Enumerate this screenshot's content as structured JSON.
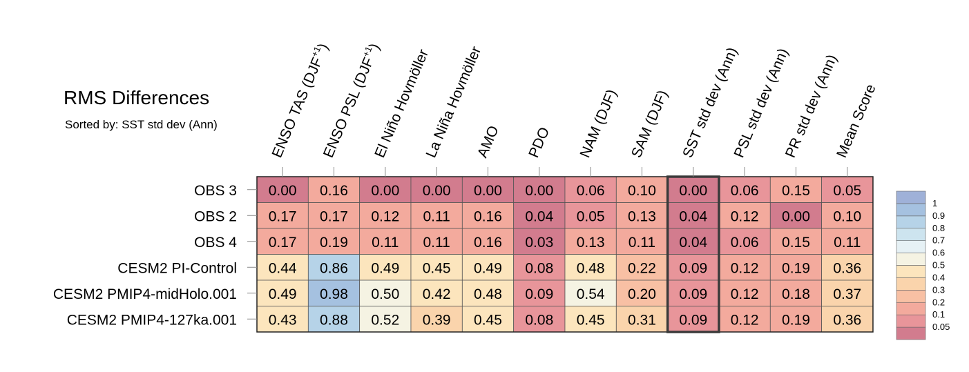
{
  "chart_data": {
    "type": "heatmap",
    "title": "RMS Differences",
    "subtitle": "Sorted by: SST std dev (Ann)",
    "columns": [
      "ENSO TAS (DJF+1)",
      "ENSO PSL (DJF+1)",
      "El Niño Hovmöller",
      "La Niña Hovmöller",
      "AMO",
      "PDO",
      "NAM (DJF)",
      "SAM (DJF)",
      "SST std dev (Ann)",
      "PSL std dev (Ann)",
      "PR std dev (Ann)",
      "Mean Score"
    ],
    "rows": [
      "OBS 3",
      "OBS 2",
      "OBS 4",
      "CESM2 PI-Control",
      "CESM2 PMIP4-midHolo.001",
      "CESM2 PMIP4-127ka.001"
    ],
    "values": [
      [
        0.0,
        0.16,
        0.0,
        0.0,
        0.0,
        0.0,
        0.06,
        0.1,
        0.0,
        0.06,
        0.15,
        0.05
      ],
      [
        0.17,
        0.17,
        0.12,
        0.11,
        0.16,
        0.04,
        0.05,
        0.13,
        0.04,
        0.12,
        0.0,
        0.1
      ],
      [
        0.17,
        0.19,
        0.11,
        0.11,
        0.16,
        0.03,
        0.13,
        0.11,
        0.04,
        0.06,
        0.15,
        0.11
      ],
      [
        0.44,
        0.86,
        0.49,
        0.45,
        0.49,
        0.08,
        0.48,
        0.22,
        0.09,
        0.12,
        0.19,
        0.36
      ],
      [
        0.49,
        0.98,
        0.5,
        0.42,
        0.48,
        0.09,
        0.54,
        0.2,
        0.09,
        0.12,
        0.18,
        0.37
      ],
      [
        0.43,
        0.88,
        0.52,
        0.39,
        0.45,
        0.08,
        0.45,
        0.31,
        0.09,
        0.12,
        0.19,
        0.36
      ]
    ],
    "sorted_by": "SST std dev (Ann)",
    "highlighted_column": "SST std dev (Ann)",
    "colorbar": {
      "levels": [
        0.05,
        0.1,
        0.2,
        0.3,
        0.4,
        0.5,
        0.6,
        0.7,
        0.8,
        0.9,
        1
      ],
      "labels": [
        "0.05",
        "0.1",
        "0.2",
        "0.3",
        "0.4",
        "0.5",
        "0.6",
        "0.7",
        "0.8",
        "0.9",
        "1"
      ],
      "colors": [
        "#d27c8e",
        "#e8959a",
        "#f3aa9d",
        "#f8c0a4",
        "#fad4ac",
        "#fce5bd",
        "#f5f3e3",
        "#e6f1f5",
        "#cde4ef",
        "#b6d3e8",
        "#a5c1e0",
        "#9fb1d8"
      ],
      "placement": "right"
    }
  }
}
